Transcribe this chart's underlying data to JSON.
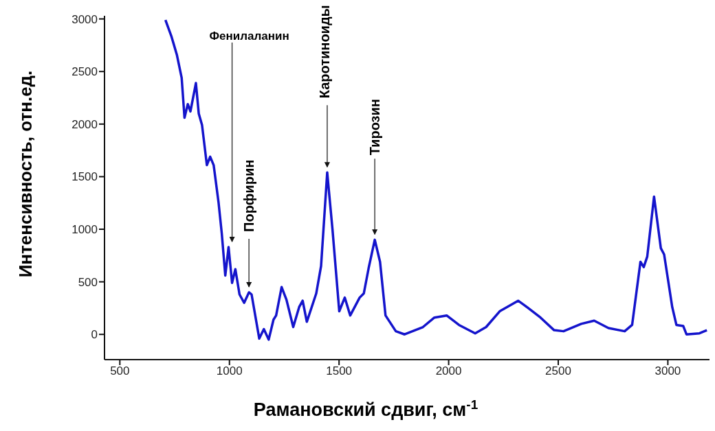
{
  "chart_data": {
    "type": "line",
    "xlabel": "Рамановский сдвиг, см$^{-1}$",
    "ylabel": "Интенсивность, отн.ед.",
    "x": [
      708,
      736,
      760,
      782,
      795,
      810,
      822,
      847,
      860,
      875,
      897,
      912,
      928,
      950,
      965,
      981,
      996,
      1012,
      1027,
      1046,
      1067,
      1089,
      1101,
      1136,
      1157,
      1179,
      1201,
      1213,
      1238,
      1260,
      1291,
      1318,
      1334,
      1353,
      1396,
      1418,
      1446,
      1470,
      1501,
      1526,
      1551,
      1594,
      1613,
      1635,
      1663,
      1687,
      1712,
      1759,
      1799,
      1883,
      1935,
      1991,
      2047,
      2121,
      2171,
      2233,
      2317,
      2357,
      2419,
      2481,
      2524,
      2605,
      2664,
      2729,
      2803,
      2837,
      2875,
      2890,
      2906,
      2937,
      2968,
      2983,
      3020,
      3039,
      3070,
      3085,
      3144,
      3178
    ],
    "series": [
      {
        "color": "#1414cc",
        "values": [
          2990,
          2830,
          2660,
          2440,
          2060,
          2190,
          2120,
          2390,
          2100,
          1990,
          1610,
          1690,
          1610,
          1260,
          960,
          560,
          830,
          490,
          620,
          380,
          300,
          400,
          380,
          -40,
          50,
          -50,
          140,
          180,
          450,
          330,
          70,
          260,
          320,
          120,
          390,
          650,
          1540,
          1000,
          220,
          350,
          180,
          350,
          390,
          630,
          900,
          690,
          180,
          30,
          0,
          70,
          160,
          180,
          90,
          10,
          70,
          220,
          320,
          260,
          160,
          40,
          30,
          100,
          130,
          60,
          30,
          90,
          690,
          640,
          740,
          1310,
          820,
          760,
          260,
          90,
          80,
          0,
          10,
          40
        ]
      }
    ],
    "xlim": [
      430,
      3190
    ],
    "xticks": [
      500,
      1000,
      1500,
      2000,
      2500,
      3000
    ],
    "ylim": [
      -240,
      3030
    ],
    "yticks": [
      0,
      500,
      1000,
      1500,
      2000,
      2500,
      3000
    ],
    "grid": false,
    "legend": false,
    "marker": "none",
    "line_style": "solid",
    "annotations": [
      {
        "text": "Фенилаланин",
        "x": 1012,
        "y": 830
      },
      {
        "text": "Порфирин",
        "x": 1089,
        "y": 400
      },
      {
        "text": "Каротиноиды",
        "x": 1446,
        "y": 1540
      },
      {
        "text": "Тирозин",
        "x": 1663,
        "y": 900
      }
    ]
  }
}
